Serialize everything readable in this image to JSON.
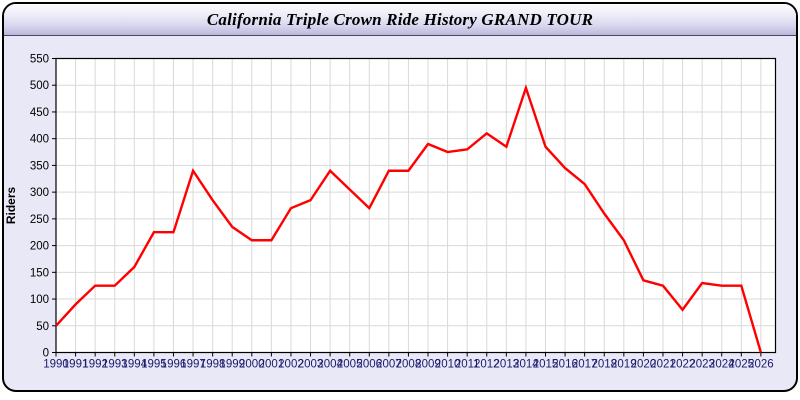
{
  "window": {
    "title": "California Triple Crown Ride History GRAND TOUR"
  },
  "colors": {
    "line_color": "#ff0000",
    "x_label_color": "#1a1a6e",
    "y_label_color": "#000000",
    "body_bg": "#e9e8f6",
    "plot_bg": "#ffffff",
    "grid_color": "#d9d9d9"
  },
  "chart_data": {
    "type": "line",
    "title": "California Triple Crown Ride History GRAND TOUR",
    "xlabel": "",
    "ylabel": "Riders",
    "ylim": [
      0,
      550
    ],
    "ytick_step": 50,
    "grid": true,
    "legend_position": "none",
    "categories": [
      "1990",
      "1991",
      "1992",
      "1993",
      "1994",
      "1995",
      "1996",
      "1997",
      "1998",
      "1999",
      "2000",
      "2001",
      "2002",
      "2003",
      "2004",
      "2005",
      "2006",
      "2007",
      "2008",
      "2009",
      "2010",
      "2011",
      "2012",
      "2013",
      "2014",
      "2015",
      "2016",
      "2017",
      "2018",
      "2019",
      "2020",
      "2021",
      "2022",
      "2023",
      "2024",
      "2025",
      "2026"
    ],
    "values": [
      50,
      90,
      125,
      125,
      160,
      225,
      225,
      340,
      285,
      235,
      210,
      210,
      270,
      285,
      340,
      305,
      270,
      340,
      340,
      390,
      375,
      380,
      410,
      385,
      495,
      385,
      345,
      315,
      260,
      210,
      135,
      125,
      80,
      130,
      125,
      125,
      0
    ]
  }
}
